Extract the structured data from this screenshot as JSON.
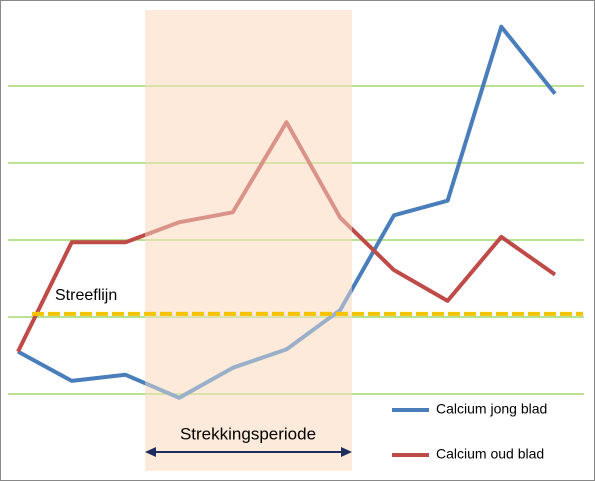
{
  "chart_data": {
    "type": "line",
    "categories": [
      null,
      null,
      null,
      null,
      null,
      null,
      null,
      null,
      null,
      null,
      null
    ],
    "series": [
      {
        "name": "Calcium jong blad",
        "color": "#4a7ebb",
        "values": [
          1.55,
          1.17,
          1.25,
          0.95,
          1.34,
          1.58,
          2.09,
          3.32,
          3.51,
          5.77,
          4.9
        ]
      },
      {
        "name": "Calcium oud blad",
        "color": "#be4b48",
        "values": [
          1.55,
          2.97,
          2.97,
          3.23,
          3.36,
          4.53,
          3.29,
          2.61,
          2.21,
          3.04,
          2.55
        ]
      }
    ],
    "ylim": [
      0,
      6
    ],
    "yticks": [
      1,
      2,
      3,
      4,
      5
    ],
    "grid": true,
    "grid_color": "#92d050",
    "target_line": {
      "label": "Streeflijn",
      "value": 2.04,
      "color": "#f5c400"
    },
    "annotation": "Strekkingsperiode",
    "legend": "lower right"
  }
}
